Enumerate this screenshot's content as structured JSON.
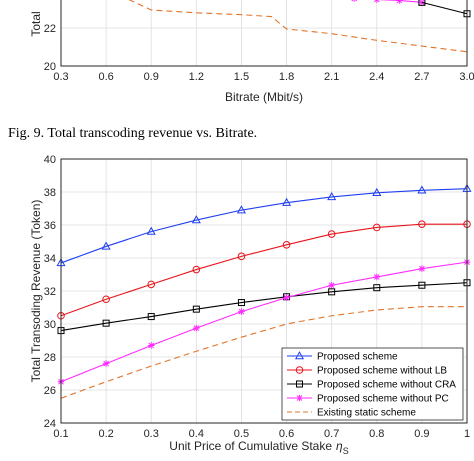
{
  "caption": "Fig. 9.   Total transcoding revenue vs. Bitrate.",
  "chart_data": [
    {
      "type": "line",
      "partial": true,
      "xlabel": "Bitrate (Mbit/s)",
      "ylabel": "Total",
      "x_ticks": [
        "0.3",
        "0.6",
        "0.9",
        "1.2",
        "1.5",
        "1.8",
        "2.1",
        "2.4",
        "2.7",
        "3.0"
      ],
      "y_ticks": [
        "22",
        "20"
      ],
      "xlim": [
        0.3,
        3.0
      ],
      "ylim": [
        20,
        23.9
      ],
      "series": [
        {
          "style": "static",
          "x": [
            0.75,
            0.9,
            1.2,
            1.5,
            1.7,
            1.8,
            2.1,
            2.4,
            2.7,
            3.0
          ],
          "y": [
            23.5,
            22.95,
            22.8,
            22.7,
            22.6,
            21.95,
            21.7,
            21.35,
            21.05,
            20.75
          ]
        },
        {
          "style": "pc",
          "x": [
            2.25,
            2.4,
            2.55,
            2.7
          ],
          "y": [
            23.55,
            23.5,
            23.45,
            23.35
          ]
        },
        {
          "style": "cra",
          "x": [
            2.7,
            3.0
          ],
          "y": [
            23.35,
            22.75
          ]
        }
      ]
    },
    {
      "type": "line",
      "xlabel": "Unit Price of Cumulative Stake",
      "xlabel_symbol": "η",
      "xlabel_sub": "S",
      "ylabel": "Total Transoding Revenue (Token)",
      "x": [
        0.1,
        0.2,
        0.3,
        0.4,
        0.5,
        0.6,
        0.7,
        0.8,
        0.9,
        1.0
      ],
      "x_ticks": [
        "0.1",
        "0.2",
        "0.3",
        "0.4",
        "0.5",
        "0.6",
        "0.7",
        "0.8",
        "0.9",
        "1"
      ],
      "y_ticks": [
        "24",
        "26",
        "28",
        "30",
        "32",
        "34",
        "36",
        "38",
        "40"
      ],
      "xlim": [
        0.1,
        1.0
      ],
      "ylim": [
        24,
        40
      ],
      "grid": true,
      "legend_position": "bottom-right",
      "series": [
        {
          "name": "Proposed scheme",
          "style": "proposed",
          "values": [
            33.7,
            34.7,
            35.6,
            36.3,
            36.9,
            37.35,
            37.7,
            37.95,
            38.1,
            38.2
          ]
        },
        {
          "name": "Proposed scheme without LB",
          "style": "lb",
          "values": [
            30.5,
            31.5,
            32.4,
            33.3,
            34.1,
            34.8,
            35.45,
            35.85,
            36.05,
            36.05
          ]
        },
        {
          "name": "Proposed scheme without CRA",
          "style": "cra",
          "values": [
            29.6,
            30.05,
            30.45,
            30.9,
            31.3,
            31.65,
            31.95,
            32.2,
            32.35,
            32.5
          ]
        },
        {
          "name": "Proposed scheme without PC",
          "style": "pc",
          "values": [
            26.5,
            27.6,
            28.7,
            29.75,
            30.75,
            31.6,
            32.35,
            32.85,
            33.35,
            33.75
          ]
        },
        {
          "name": "Existing static scheme",
          "style": "static",
          "values": [
            25.5,
            26.5,
            27.45,
            28.35,
            29.2,
            30.0,
            30.5,
            30.85,
            31.05,
            31.05
          ]
        }
      ]
    }
  ],
  "colors": {
    "proposed": "#1f3ff0",
    "lb": "#e8141c",
    "cra": "#000000",
    "pc": "#ff2bff",
    "static": "#e2742a",
    "grid": "#dcdcdc"
  }
}
